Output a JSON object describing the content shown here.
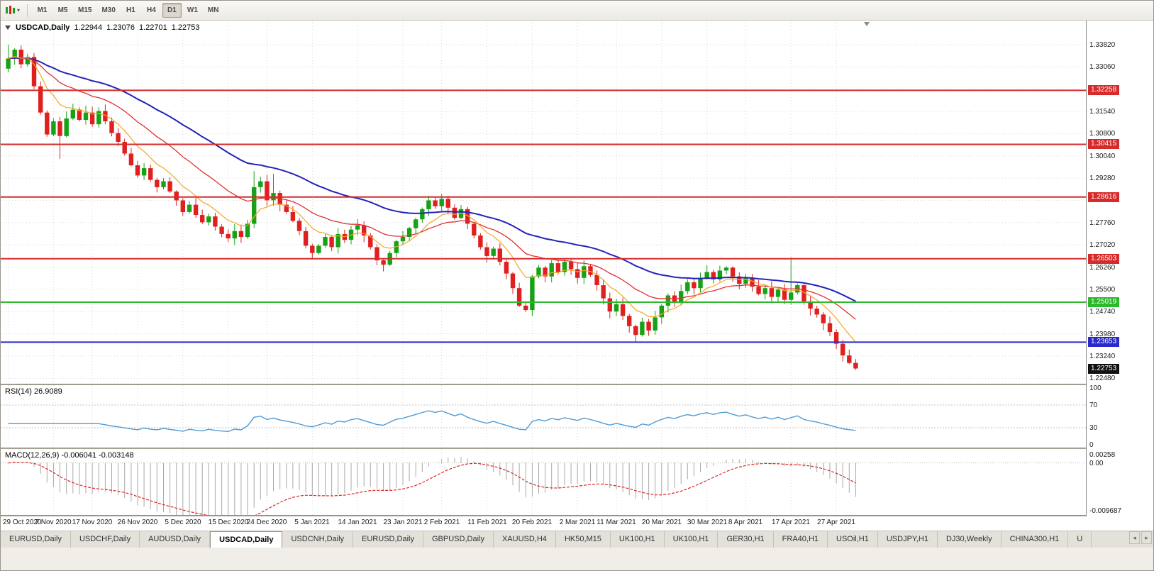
{
  "toolbar": {
    "timeframes": [
      {
        "label": "M1",
        "active": false
      },
      {
        "label": "M5",
        "active": false
      },
      {
        "label": "M15",
        "active": false
      },
      {
        "label": "M30",
        "active": false
      },
      {
        "label": "H1",
        "active": false
      },
      {
        "label": "H4",
        "active": false
      },
      {
        "label": "D1",
        "active": true
      },
      {
        "label": "W1",
        "active": false
      },
      {
        "label": "MN",
        "active": false
      }
    ]
  },
  "chart": {
    "title_symbol": "USDCAD,Daily",
    "quote": {
      "open": "1.22944",
      "high": "1.23076",
      "low": "1.22701",
      "close": "1.22753"
    },
    "price_axis": [
      "1.33820",
      "1.33060",
      "1.32300",
      "1.31540",
      "1.30800",
      "1.30040",
      "1.29280",
      "1.28520",
      "1.27760",
      "1.27020",
      "1.26260",
      "1.25500",
      "1.24740",
      "1.23980",
      "1.23240",
      "1.22480"
    ],
    "levels": [
      {
        "price": "1.32258",
        "value": 1.32258,
        "color": "#d62b2b"
      },
      {
        "price": "1.30415",
        "value": 1.30415,
        "color": "#d62b2b"
      },
      {
        "price": "1.28616",
        "value": 1.28616,
        "color": "#d62b2b"
      },
      {
        "price": "1.26503",
        "value": 1.26503,
        "color": "#d62b2b"
      },
      {
        "price": "1.25019",
        "value": 1.25019,
        "color": "#2eb82e"
      },
      {
        "price": "1.23653",
        "value": 1.23653,
        "color": "#2929cc"
      }
    ],
    "current_price": {
      "label": "1.22753",
      "value": 1.22753,
      "bg": "#111111"
    },
    "colors": {
      "candle_up": "#17a117",
      "candle_down": "#e01f1f",
      "ma_fast": "#f5a623",
      "ma_mid": "#e03030",
      "ma_slow": "#2323bb",
      "rsi_line": "#4f9bd6",
      "macd_bar": "#a9a9a9",
      "macd_signal": "#dd2222",
      "grid": "#d9d9d9",
      "level_dash": "#c0c0c0"
    }
  },
  "rsi": {
    "label": "RSI(14) 26.9089",
    "value": "26.9089",
    "axis": [
      "100",
      "70",
      "30",
      "0"
    ],
    "levels": [
      70,
      30
    ]
  },
  "macd": {
    "label": "MACD(12,26,9) -0.006041 -0.003148",
    "main": "-0.006041",
    "signal": "-0.003148",
    "axis": [
      "0.00258",
      "0.00",
      "-0.009687"
    ],
    "range": {
      "top": 0.00258,
      "bottom": -0.009687
    }
  },
  "date_axis": [
    "29 Oct 2020",
    "7 Nov 2020",
    "17 Nov 2020",
    "26 Nov 2020",
    "5 Dec 2020",
    "15 Dec 2020",
    "24 Dec 2020",
    "5 Jan 2021",
    "14 Jan 2021",
    "23 Jan 2021",
    "2 Feb 2021",
    "11 Feb 2021",
    "20 Feb 2021",
    "2 Mar 2021",
    "11 Mar 2021",
    "20 Mar 2021",
    "30 Mar 2021",
    "8 Apr 2021",
    "17 Apr 2021",
    "27 Apr 2021"
  ],
  "tabs": {
    "items": [
      "EURUSD,Daily",
      "USDCHF,Daily",
      "AUDUSD,Daily",
      "USDCAD,Daily",
      "USDCNH,Daily",
      "EURUSD,Daily",
      "GBPUSD,Daily",
      "XAUUSD,H4",
      "HK50,M15",
      "UK100,H1",
      "UK100,H1",
      "GER30,H1",
      "FRA40,H1",
      "USOil,H1",
      "USDJPY,H1",
      "DJ30,Weekly",
      "CHINA300,H1",
      "U"
    ],
    "active_index": 3,
    "nav": {
      "left": "◂",
      "right": "▸"
    }
  },
  "chart_data": {
    "type": "candlestick",
    "symbol": "USDCAD",
    "timeframe": "Daily",
    "x_labels": [
      "29 Oct 2020",
      "7 Nov 2020",
      "17 Nov 2020",
      "26 Nov 2020",
      "5 Dec 2020",
      "15 Dec 2020",
      "24 Dec 2020",
      "5 Jan 2021",
      "14 Jan 2021",
      "23 Jan 2021",
      "2 Feb 2021",
      "11 Feb 2021",
      "20 Feb 2021",
      "2 Mar 2021",
      "11 Mar 2021",
      "20 Mar 2021",
      "30 Mar 2021",
      "8 Apr 2021",
      "17 Apr 2021",
      "27 Apr 2021"
    ],
    "y_range": [
      1.2248,
      1.3382
    ],
    "last_ohlc": {
      "open": 1.22944,
      "high": 1.23076,
      "low": 1.22701,
      "close": 1.22753
    },
    "closes": [
      1.3335,
      1.3365,
      1.3315,
      1.334,
      1.324,
      1.315,
      1.3075,
      1.312,
      1.307,
      1.313,
      1.316,
      1.3125,
      1.315,
      1.311,
      1.3155,
      1.312,
      1.308,
      1.305,
      1.301,
      1.297,
      1.2935,
      1.296,
      1.292,
      1.2895,
      1.2915,
      1.288,
      1.285,
      1.281,
      1.2835,
      1.28,
      1.2775,
      1.2795,
      1.276,
      1.2735,
      1.272,
      1.2745,
      1.2725,
      1.277,
      1.2895,
      1.2915,
      1.285,
      1.2875,
      1.2835,
      1.281,
      1.278,
      1.2745,
      1.2695,
      1.267,
      1.2695,
      1.2725,
      1.269,
      1.2735,
      1.2715,
      1.275,
      1.2765,
      1.273,
      1.269,
      1.2645,
      1.263,
      1.267,
      1.271,
      1.2725,
      1.2755,
      1.2785,
      1.282,
      1.285,
      1.283,
      1.2855,
      1.2825,
      1.279,
      1.282,
      1.277,
      1.273,
      1.269,
      1.266,
      1.2685,
      1.264,
      1.26,
      1.255,
      1.249,
      1.2475,
      1.259,
      1.262,
      1.259,
      1.2635,
      1.2605,
      1.264,
      1.2615,
      1.2585,
      1.2625,
      1.2595,
      1.256,
      1.2515,
      1.247,
      1.2495,
      1.2455,
      1.242,
      1.239,
      1.2435,
      1.2405,
      1.245,
      1.249,
      1.2525,
      1.25,
      1.254,
      1.257,
      1.255,
      1.2585,
      1.2605,
      1.258,
      1.261,
      1.262,
      1.259,
      1.2565,
      1.2585,
      1.2555,
      1.253,
      1.255,
      1.252,
      1.2545,
      1.251,
      1.2535,
      1.256,
      1.2505,
      1.248,
      1.246,
      1.243,
      1.24,
      1.236,
      1.232,
      1.22944,
      1.22753
    ],
    "wick_overrides": {
      "0": [
        1.3382,
        null
      ],
      "8": [
        null,
        1.2992
      ],
      "38": [
        1.295,
        null
      ],
      "41": [
        1.294,
        null
      ],
      "58": [
        null,
        1.2607
      ],
      "67": [
        1.2872,
        null
      ],
      "80": [
        null,
        1.2468
      ],
      "97": [
        null,
        1.2365
      ],
      "121": [
        1.2655,
        null
      ],
      "131": [
        1.23076,
        1.22701
      ]
    },
    "date_grid_indices": [
      0,
      7,
      13,
      20,
      27,
      34,
      40,
      47,
      54,
      61,
      67,
      74,
      81,
      88,
      94,
      101,
      108,
      114,
      121,
      128
    ],
    "indicators": [
      {
        "name": "RSI",
        "params": "14",
        "displayed_value": 26.9089,
        "levels": [
          70,
          30
        ],
        "scale": [
          0,
          100
        ]
      },
      {
        "name": "MACD",
        "params": "12,26,9",
        "displayed_main": -0.006041,
        "displayed_signal": -0.003148,
        "scale": [
          -0.009687,
          0.00258
        ]
      },
      {
        "name": "MA slow",
        "type": "ema",
        "period": 42,
        "color": "#2323bb"
      },
      {
        "name": "MA mid",
        "type": "ema",
        "period": 20,
        "color": "#e03030"
      },
      {
        "name": "MA fast",
        "type": "ema",
        "period": 8,
        "color": "#f5a623"
      }
    ]
  }
}
